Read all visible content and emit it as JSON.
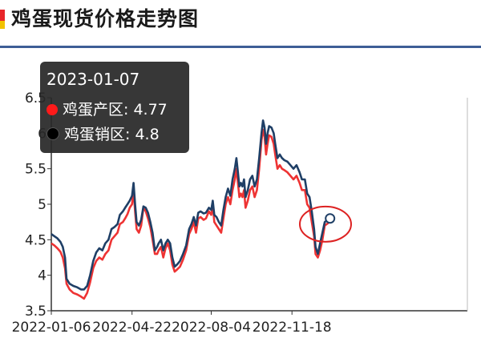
{
  "header": {
    "title": "鸡蛋现货价格走势图"
  },
  "colors": {
    "accent_red": "#e8262a",
    "accent_yellow": "#f2c200",
    "rule": "#3d5e96",
    "series_red": "#ee3333",
    "series_navy": "#1f3f66",
    "annotation": "#dd2222"
  },
  "tooltip": {
    "date": "2023-01-07",
    "rows": [
      {
        "label": "鸡蛋产区: 4.77",
        "color": "#ff1a1a"
      },
      {
        "label": "鸡蛋销区: 4.8",
        "color": "#000000"
      }
    ]
  },
  "chart_data": {
    "type": "line",
    "title": "",
    "xlabel": "",
    "ylabel": "",
    "ylim": [
      3.5,
      6.5
    ],
    "yticks": [
      "3.5",
      "4",
      "4.5",
      "5",
      "5.5",
      "6",
      "6.5"
    ],
    "xticks": [
      "2022-01-06",
      "2022-04-22",
      "2022-08-04",
      "2022-11-18"
    ],
    "x_range": [
      "2022-01-06",
      "2023-01-07"
    ],
    "grid": false,
    "series": [
      {
        "name": "鸡蛋产区",
        "color": "#ee3333",
        "points": [
          [
            "2022-01-06",
            4.45
          ],
          [
            "2022-01-10",
            4.42
          ],
          [
            "2022-01-14",
            4.38
          ],
          [
            "2022-01-18",
            4.33
          ],
          [
            "2022-01-21",
            4.25
          ],
          [
            "2022-01-24",
            4.1
          ],
          [
            "2022-01-26",
            3.88
          ],
          [
            "2022-01-30",
            3.8
          ],
          [
            "2022-02-04",
            3.75
          ],
          [
            "2022-02-09",
            3.73
          ],
          [
            "2022-02-14",
            3.7
          ],
          [
            "2022-02-18",
            3.67
          ],
          [
            "2022-02-22",
            3.75
          ],
          [
            "2022-02-26",
            3.9
          ],
          [
            "2022-03-02",
            4.1
          ],
          [
            "2022-03-06",
            4.2
          ],
          [
            "2022-03-10",
            4.25
          ],
          [
            "2022-03-14",
            4.22
          ],
          [
            "2022-03-18",
            4.3
          ],
          [
            "2022-03-22",
            4.35
          ],
          [
            "2022-03-26",
            4.5
          ],
          [
            "2022-03-30",
            4.55
          ],
          [
            "2022-04-03",
            4.6
          ],
          [
            "2022-04-06",
            4.72
          ],
          [
            "2022-04-10",
            4.75
          ],
          [
            "2022-04-13",
            4.8
          ],
          [
            "2022-04-16",
            4.86
          ],
          [
            "2022-04-19",
            4.95
          ],
          [
            "2022-04-22",
            5.0
          ],
          [
            "2022-04-24",
            5.2
          ],
          [
            "2022-04-26",
            4.9
          ],
          [
            "2022-04-28",
            4.65
          ],
          [
            "2022-05-01",
            4.6
          ],
          [
            "2022-05-04",
            4.7
          ],
          [
            "2022-05-07",
            4.95
          ],
          [
            "2022-05-10",
            4.9
          ],
          [
            "2022-05-13",
            4.8
          ],
          [
            "2022-05-16",
            4.68
          ],
          [
            "2022-05-19",
            4.5
          ],
          [
            "2022-05-22",
            4.3
          ],
          [
            "2022-05-25",
            4.3
          ],
          [
            "2022-05-27",
            4.35
          ],
          [
            "2022-05-30",
            4.4
          ],
          [
            "2022-06-02",
            4.25
          ],
          [
            "2022-06-05",
            4.38
          ],
          [
            "2022-06-08",
            4.45
          ],
          [
            "2022-06-11",
            4.35
          ],
          [
            "2022-06-14",
            4.15
          ],
          [
            "2022-06-17",
            4.05
          ],
          [
            "2022-06-20",
            4.08
          ],
          [
            "2022-06-24",
            4.12
          ],
          [
            "2022-06-28",
            4.22
          ],
          [
            "2022-07-02",
            4.35
          ],
          [
            "2022-07-06",
            4.58
          ],
          [
            "2022-07-09",
            4.65
          ],
          [
            "2022-07-12",
            4.75
          ],
          [
            "2022-07-15",
            4.6
          ],
          [
            "2022-07-18",
            4.8
          ],
          [
            "2022-07-21",
            4.82
          ],
          [
            "2022-07-25",
            4.78
          ],
          [
            "2022-07-28",
            4.8
          ],
          [
            "2022-08-01",
            4.9
          ],
          [
            "2022-08-04",
            4.85
          ],
          [
            "2022-08-06",
            5.0
          ],
          [
            "2022-08-08",
            4.75
          ],
          [
            "2022-08-11",
            4.7
          ],
          [
            "2022-08-14",
            4.65
          ],
          [
            "2022-08-17",
            4.6
          ],
          [
            "2022-08-20",
            4.8
          ],
          [
            "2022-08-23",
            5.0
          ],
          [
            "2022-08-26",
            5.1
          ],
          [
            "2022-08-29",
            5.0
          ],
          [
            "2022-09-01",
            5.2
          ],
          [
            "2022-09-04",
            5.35
          ],
          [
            "2022-09-06",
            5.5
          ],
          [
            "2022-09-08",
            5.3
          ],
          [
            "2022-09-10",
            5.1
          ],
          [
            "2022-09-12",
            5.15
          ],
          [
            "2022-09-14",
            5.1
          ],
          [
            "2022-09-16",
            5.2
          ],
          [
            "2022-09-18",
            4.95
          ],
          [
            "2022-09-21",
            5.05
          ],
          [
            "2022-09-24",
            5.2
          ],
          [
            "2022-09-27",
            5.25
          ],
          [
            "2022-09-30",
            5.1
          ],
          [
            "2022-10-03",
            5.2
          ],
          [
            "2022-10-06",
            5.5
          ],
          [
            "2022-10-09",
            5.9
          ],
          [
            "2022-10-11",
            6.05
          ],
          [
            "2022-10-13",
            5.95
          ],
          [
            "2022-10-15",
            5.7
          ],
          [
            "2022-10-17",
            5.85
          ],
          [
            "2022-10-19",
            5.97
          ],
          [
            "2022-10-22",
            5.95
          ],
          [
            "2022-10-25",
            5.85
          ],
          [
            "2022-10-27",
            5.7
          ],
          [
            "2022-10-30",
            5.5
          ],
          [
            "2022-11-02",
            5.55
          ],
          [
            "2022-11-05",
            5.5
          ],
          [
            "2022-11-08",
            5.48
          ],
          [
            "2022-11-12",
            5.45
          ],
          [
            "2022-11-16",
            5.4
          ],
          [
            "2022-11-20",
            5.35
          ],
          [
            "2022-11-24",
            5.4
          ],
          [
            "2022-11-28",
            5.3
          ],
          [
            "2022-12-01",
            5.2
          ],
          [
            "2022-12-05",
            5.2
          ],
          [
            "2022-12-08",
            5.0
          ],
          [
            "2022-12-11",
            4.95
          ],
          [
            "2022-12-14",
            4.75
          ],
          [
            "2022-12-17",
            4.55
          ],
          [
            "2022-12-19",
            4.3
          ],
          [
            "2022-12-22",
            4.25
          ],
          [
            "2022-12-25",
            4.35
          ],
          [
            "2022-12-28",
            4.5
          ],
          [
            "2022-12-31",
            4.7
          ],
          [
            "2023-01-04",
            4.73
          ],
          [
            "2023-01-07",
            4.77
          ]
        ]
      },
      {
        "name": "鸡蛋销区",
        "color": "#1f3f66",
        "points": [
          [
            "2022-01-06",
            4.58
          ],
          [
            "2022-01-10",
            4.55
          ],
          [
            "2022-01-14",
            4.52
          ],
          [
            "2022-01-18",
            4.47
          ],
          [
            "2022-01-21",
            4.4
          ],
          [
            "2022-01-24",
            4.25
          ],
          [
            "2022-01-26",
            3.95
          ],
          [
            "2022-01-30",
            3.88
          ],
          [
            "2022-02-04",
            3.85
          ],
          [
            "2022-02-09",
            3.83
          ],
          [
            "2022-02-14",
            3.8
          ],
          [
            "2022-02-18",
            3.8
          ],
          [
            "2022-02-22",
            3.85
          ],
          [
            "2022-02-26",
            4.0
          ],
          [
            "2022-03-02",
            4.2
          ],
          [
            "2022-03-06",
            4.32
          ],
          [
            "2022-03-10",
            4.38
          ],
          [
            "2022-03-14",
            4.35
          ],
          [
            "2022-03-18",
            4.45
          ],
          [
            "2022-03-22",
            4.5
          ],
          [
            "2022-03-26",
            4.65
          ],
          [
            "2022-03-30",
            4.68
          ],
          [
            "2022-04-03",
            4.72
          ],
          [
            "2022-04-06",
            4.85
          ],
          [
            "2022-04-10",
            4.9
          ],
          [
            "2022-04-13",
            4.95
          ],
          [
            "2022-04-16",
            5.0
          ],
          [
            "2022-04-19",
            5.05
          ],
          [
            "2022-04-22",
            5.12
          ],
          [
            "2022-04-24",
            5.3
          ],
          [
            "2022-04-26",
            5.0
          ],
          [
            "2022-04-28",
            4.75
          ],
          [
            "2022-05-01",
            4.7
          ],
          [
            "2022-05-04",
            4.78
          ],
          [
            "2022-05-07",
            4.97
          ],
          [
            "2022-05-10",
            4.95
          ],
          [
            "2022-05-13",
            4.88
          ],
          [
            "2022-05-16",
            4.75
          ],
          [
            "2022-05-19",
            4.6
          ],
          [
            "2022-05-22",
            4.35
          ],
          [
            "2022-05-25",
            4.4
          ],
          [
            "2022-05-27",
            4.45
          ],
          [
            "2022-05-30",
            4.5
          ],
          [
            "2022-06-02",
            4.35
          ],
          [
            "2022-06-05",
            4.45
          ],
          [
            "2022-06-08",
            4.5
          ],
          [
            "2022-06-11",
            4.45
          ],
          [
            "2022-06-14",
            4.25
          ],
          [
            "2022-06-17",
            4.12
          ],
          [
            "2022-06-20",
            4.15
          ],
          [
            "2022-06-24",
            4.2
          ],
          [
            "2022-06-28",
            4.3
          ],
          [
            "2022-07-02",
            4.42
          ],
          [
            "2022-07-06",
            4.65
          ],
          [
            "2022-07-09",
            4.72
          ],
          [
            "2022-07-12",
            4.82
          ],
          [
            "2022-07-15",
            4.7
          ],
          [
            "2022-07-18",
            4.88
          ],
          [
            "2022-07-21",
            4.9
          ],
          [
            "2022-07-25",
            4.87
          ],
          [
            "2022-07-28",
            4.88
          ],
          [
            "2022-08-01",
            4.95
          ],
          [
            "2022-08-04",
            4.92
          ],
          [
            "2022-08-06",
            5.05
          ],
          [
            "2022-08-08",
            4.85
          ],
          [
            "2022-08-11",
            4.82
          ],
          [
            "2022-08-14",
            4.75
          ],
          [
            "2022-08-17",
            4.7
          ],
          [
            "2022-08-20",
            4.92
          ],
          [
            "2022-08-23",
            5.1
          ],
          [
            "2022-08-26",
            5.22
          ],
          [
            "2022-08-29",
            5.12
          ],
          [
            "2022-09-01",
            5.35
          ],
          [
            "2022-09-04",
            5.5
          ],
          [
            "2022-09-06",
            5.65
          ],
          [
            "2022-09-08",
            5.45
          ],
          [
            "2022-09-10",
            5.25
          ],
          [
            "2022-09-12",
            5.3
          ],
          [
            "2022-09-14",
            5.25
          ],
          [
            "2022-09-16",
            5.35
          ],
          [
            "2022-09-18",
            5.1
          ],
          [
            "2022-09-21",
            5.2
          ],
          [
            "2022-09-24",
            5.35
          ],
          [
            "2022-09-27",
            5.4
          ],
          [
            "2022-09-30",
            5.25
          ],
          [
            "2022-10-03",
            5.35
          ],
          [
            "2022-10-06",
            5.65
          ],
          [
            "2022-10-09",
            6.0
          ],
          [
            "2022-10-11",
            6.18
          ],
          [
            "2022-10-13",
            6.08
          ],
          [
            "2022-10-15",
            5.85
          ],
          [
            "2022-10-17",
            6.0
          ],
          [
            "2022-10-19",
            6.1
          ],
          [
            "2022-10-22",
            6.08
          ],
          [
            "2022-10-25",
            6.0
          ],
          [
            "2022-10-27",
            5.85
          ],
          [
            "2022-10-30",
            5.65
          ],
          [
            "2022-11-02",
            5.7
          ],
          [
            "2022-11-05",
            5.65
          ],
          [
            "2022-11-08",
            5.62
          ],
          [
            "2022-11-12",
            5.6
          ],
          [
            "2022-11-16",
            5.55
          ],
          [
            "2022-11-20",
            5.5
          ],
          [
            "2022-11-24",
            5.55
          ],
          [
            "2022-11-28",
            5.45
          ],
          [
            "2022-12-01",
            5.35
          ],
          [
            "2022-12-05",
            5.35
          ],
          [
            "2022-12-08",
            5.15
          ],
          [
            "2022-12-11",
            5.1
          ],
          [
            "2022-12-14",
            4.9
          ],
          [
            "2022-12-17",
            4.65
          ],
          [
            "2022-12-19",
            4.4
          ],
          [
            "2022-12-22",
            4.3
          ],
          [
            "2022-12-25",
            4.45
          ],
          [
            "2022-12-28",
            4.6
          ],
          [
            "2022-12-31",
            4.75
          ],
          [
            "2023-01-04",
            4.78
          ],
          [
            "2023-01-07",
            4.8
          ]
        ]
      }
    ],
    "annotation": {
      "type": "ellipse",
      "center_x": "2023-01-01",
      "center_y": 4.72,
      "color": "#dd2222"
    }
  }
}
